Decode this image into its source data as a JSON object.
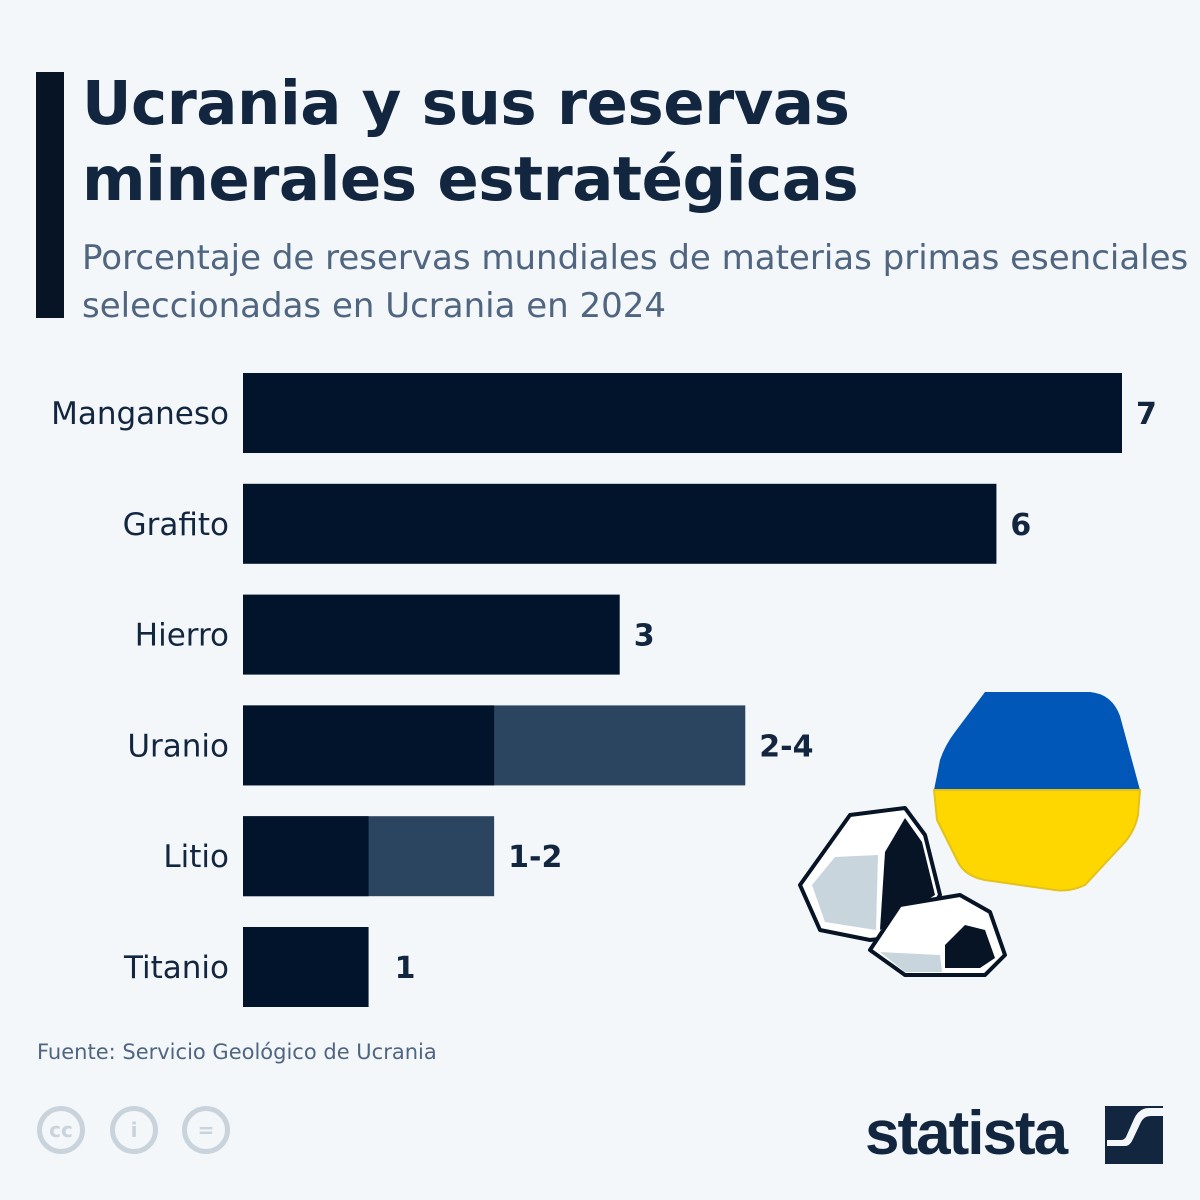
{
  "header": {
    "title": "Ucrania y sus reservas minerales estratégicas",
    "subtitle": "Porcentaje de reservas mundiales de materias primas esenciales seleccionadas en Ucrania en 2024"
  },
  "chart_data": {
    "type": "bar",
    "orientation": "horizontal",
    "title": "Ucrania y sus reservas minerales estratégicas",
    "subtitle": "Porcentaje de reservas mundiales de materias primas esenciales seleccionadas en Ucrania en 2024",
    "categories": [
      "Manganeso",
      "Grafito",
      "Hierro",
      "Uranio",
      "Litio",
      "Titanio"
    ],
    "low": [
      7,
      6,
      3,
      2,
      1,
      1
    ],
    "high": [
      7,
      6,
      3,
      4,
      2,
      1
    ],
    "data_labels": [
      "7",
      "6",
      "3",
      "2-4",
      "1-2",
      "1"
    ],
    "colors": {
      "base": "#02142b",
      "range": "#2b4560"
    },
    "xlim": [
      0,
      7
    ],
    "grid": false,
    "legend": "none"
  },
  "footer": {
    "source": "Fuente: Servicio Geológico de Ucrania",
    "brand": "statista",
    "license_icons": [
      "cc",
      "i",
      "="
    ]
  },
  "flag_colors": {
    "blue": "#0057b8",
    "yellow": "#ffd700"
  }
}
